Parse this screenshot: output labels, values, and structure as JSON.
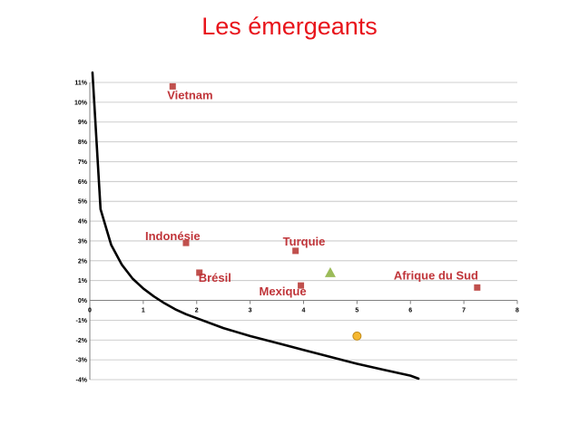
{
  "page": {
    "title": "Les émergeants"
  },
  "colors": {
    "title": "#e8141b",
    "marker": "#c0504d",
    "label": "#c0353a",
    "curve": "#000000",
    "grid": "#bfbfbf",
    "triangle": "#9bbb59",
    "circle": "#f6b830",
    "circle_stroke": "#c08a1a"
  },
  "chart_data": {
    "type": "scatter",
    "title": "",
    "xlabel": "",
    "ylabel": "",
    "xlim": [
      0,
      8
    ],
    "ylim": [
      -4,
      11
    ],
    "x_ticks": [
      "0",
      "1",
      "2",
      "3",
      "4",
      "5",
      "6",
      "7",
      "8"
    ],
    "y_ticks": [
      "-4%",
      "-3%",
      "-2%",
      "-1%",
      "0%",
      "1%",
      "2%",
      "3%",
      "4%",
      "5%",
      "6%",
      "7%",
      "8%",
      "9%",
      "10%",
      "11%"
    ],
    "grid": "horizontal",
    "points": [
      {
        "label": "Vietnam",
        "x": 1.55,
        "y": 10.8,
        "marker": "square"
      },
      {
        "label": "Indonésie",
        "x": 1.8,
        "y": 2.9,
        "marker": "square"
      },
      {
        "label": "Turquie",
        "x": 3.85,
        "y": 2.5,
        "marker": "square"
      },
      {
        "label": "Brésil",
        "x": 2.05,
        "y": 1.4,
        "marker": "square"
      },
      {
        "label": "Mexique",
        "x": 3.95,
        "y": 0.75,
        "marker": "square"
      },
      {
        "label": "Afrique du Sud",
        "x": 7.25,
        "y": 0.65,
        "marker": "square"
      },
      {
        "label": "",
        "x": 4.5,
        "y": 1.4,
        "marker": "triangle"
      },
      {
        "label": "",
        "x": 5.0,
        "y": -1.8,
        "marker": "circle"
      }
    ],
    "curve": {
      "x": [
        0.05,
        0.2,
        0.4,
        0.6,
        0.8,
        1.0,
        1.2,
        1.4,
        1.6,
        1.8,
        2.0,
        2.5,
        3.0,
        3.5,
        4.0,
        4.5,
        5.0,
        5.5,
        6.0,
        6.15
      ],
      "y": [
        11.5,
        4.6,
        2.8,
        1.8,
        1.1,
        0.6,
        0.2,
        -0.15,
        -0.45,
        -0.7,
        -0.9,
        -1.4,
        -1.8,
        -2.15,
        -2.5,
        -2.85,
        -3.2,
        -3.5,
        -3.8,
        -3.95
      ]
    }
  }
}
